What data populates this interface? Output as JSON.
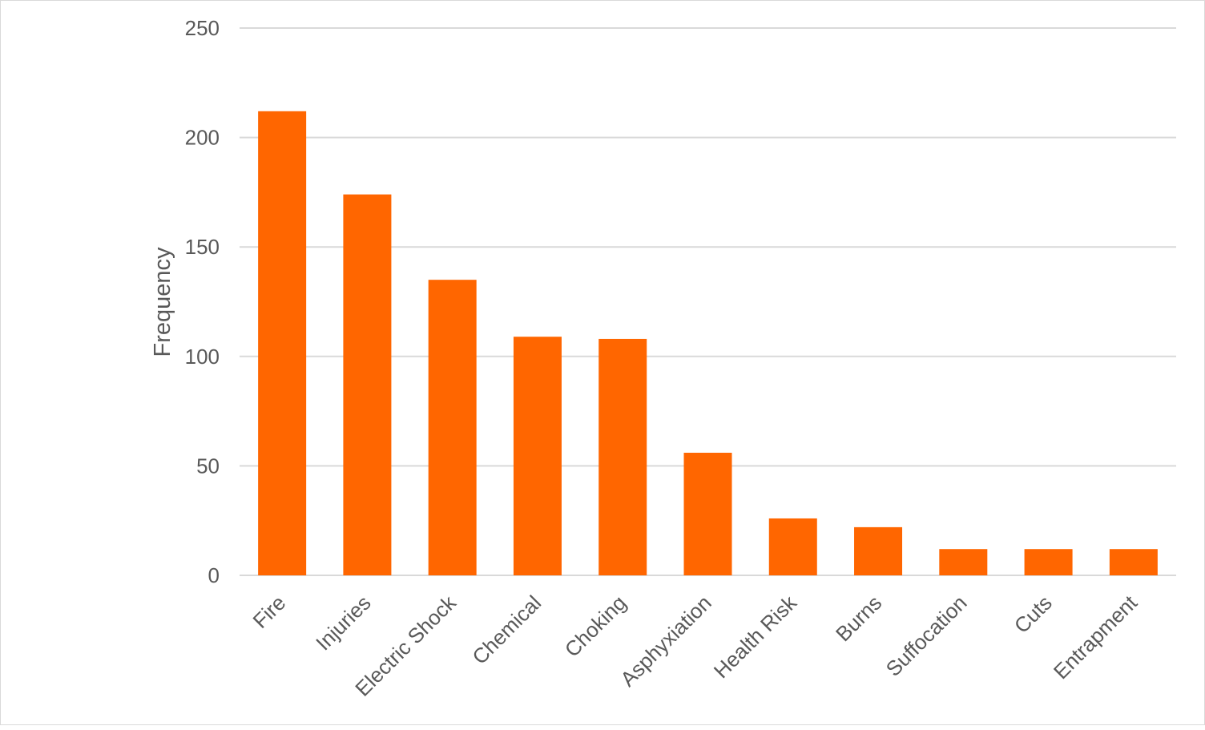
{
  "chart_data": {
    "type": "bar",
    "title": "",
    "xlabel": "",
    "ylabel": "Frequency",
    "categories": [
      "Fire",
      "Injuries",
      "Electric Shock",
      "Chemical",
      "Choking",
      "Asphyxiation",
      "Health Risk",
      "Burns",
      "Suffocation",
      "Cuts",
      "Entrapment"
    ],
    "values": [
      212,
      174,
      135,
      109,
      108,
      56,
      26,
      22,
      12,
      12,
      12
    ],
    "ylim": [
      0,
      250
    ],
    "yticks": [
      0,
      50,
      100,
      150,
      200,
      250
    ],
    "grid": true,
    "legend": "none",
    "bar_color": "#FF6600",
    "grid_color": "#D9D9D9"
  }
}
